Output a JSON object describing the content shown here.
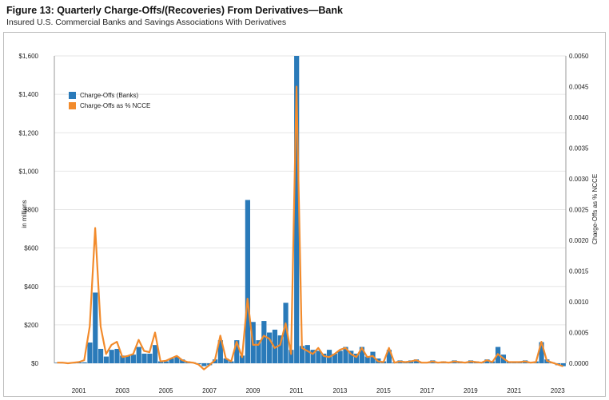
{
  "figure": {
    "title": "Figure 13: Quarterly Charge-Offs/(Recoveries) From Derivatives—Bank",
    "subtitle": "Insured U.S. Commercial Banks and Savings Associations With Derivatives"
  },
  "chart_data": {
    "type": "bar",
    "ylabel": "in millions",
    "y2label": "Charge-Offs as % NCCE",
    "ylim": [
      0,
      1600
    ],
    "y2lim": [
      0,
      0.005
    ],
    "yticks": [
      "$0",
      "$200",
      "$400",
      "$600",
      "$800",
      "$1,000",
      "$1,200",
      "$1,400",
      "$1,600"
    ],
    "y2ticks": [
      "0.0000",
      "0.0005",
      "0.0010",
      "0.0015",
      "0.0020",
      "0.0025",
      "0.0030",
      "0.0035",
      "0.0040",
      "0.0045",
      "0.0050"
    ],
    "xticks": [
      "2001",
      "2003",
      "2005",
      "2007",
      "2009",
      "2011",
      "2013",
      "2015",
      "2017",
      "2019",
      "2021",
      "2023"
    ],
    "legend_position": "top-left",
    "colors": {
      "bars": "#2a7ab9",
      "line": "#f28b2c"
    },
    "series": [
      {
        "name": "Charge-Offs (Banks)",
        "kind": "bar",
        "axis": "left",
        "x": [
          "2000Q1",
          "2000Q2",
          "2000Q3",
          "2000Q4",
          "2001Q1",
          "2001Q2",
          "2001Q3",
          "2001Q4",
          "2002Q1",
          "2002Q2",
          "2002Q3",
          "2002Q4",
          "2003Q1",
          "2003Q2",
          "2003Q3",
          "2003Q4",
          "2004Q1",
          "2004Q2",
          "2004Q3",
          "2004Q4",
          "2005Q1",
          "2005Q2",
          "2005Q3",
          "2005Q4",
          "2006Q1",
          "2006Q2",
          "2006Q3",
          "2006Q4",
          "2007Q1",
          "2007Q2",
          "2007Q3",
          "2007Q4",
          "2008Q1",
          "2008Q2",
          "2008Q3",
          "2008Q4",
          "2009Q1",
          "2009Q2",
          "2009Q3",
          "2009Q4",
          "2010Q1",
          "2010Q2",
          "2010Q3",
          "2010Q4",
          "2011Q1",
          "2011Q2",
          "2011Q3",
          "2011Q4",
          "2012Q1",
          "2012Q2",
          "2012Q3",
          "2012Q4",
          "2013Q1",
          "2013Q2",
          "2013Q3",
          "2013Q4",
          "2014Q1",
          "2014Q2",
          "2014Q3",
          "2014Q4",
          "2015Q1",
          "2015Q2",
          "2015Q3",
          "2015Q4",
          "2016Q1",
          "2016Q2",
          "2016Q3",
          "2016Q4",
          "2017Q1",
          "2017Q2",
          "2017Q3",
          "2017Q4",
          "2018Q1",
          "2018Q2",
          "2018Q3",
          "2018Q4",
          "2019Q1",
          "2019Q2",
          "2019Q3",
          "2019Q4",
          "2020Q1",
          "2020Q2",
          "2020Q3",
          "2020Q4",
          "2021Q1",
          "2021Q2",
          "2021Q3",
          "2021Q4",
          "2022Q1",
          "2022Q2",
          "2022Q3",
          "2022Q4",
          "2023Q1",
          "2023Q2"
        ],
        "values": [
          3,
          2,
          1,
          2,
          5,
          5,
          108,
          368,
          75,
          35,
          70,
          75,
          40,
          40,
          45,
          85,
          50,
          50,
          95,
          10,
          10,
          25,
          35,
          20,
          10,
          5,
          -5,
          -15,
          -10,
          20,
          120,
          25,
          10,
          120,
          40,
          850,
          215,
          120,
          220,
          160,
          175,
          145,
          315,
          70,
          1600,
          90,
          95,
          70,
          65,
          50,
          70,
          50,
          65,
          85,
          65,
          50,
          85,
          35,
          60,
          25,
          10,
          70,
          5,
          15,
          10,
          15,
          20,
          5,
          5,
          15,
          5,
          10,
          5,
          15,
          10,
          5,
          15,
          10,
          5,
          20,
          10,
          85,
          45,
          10,
          10,
          10,
          15,
          5,
          10,
          110,
          20,
          5,
          -10,
          -15
        ]
      },
      {
        "name": "Charge-Offs as % NCCE",
        "kind": "line",
        "axis": "right",
        "x": [
          "2000Q1",
          "2000Q2",
          "2000Q3",
          "2000Q4",
          "2001Q1",
          "2001Q2",
          "2001Q3",
          "2001Q4",
          "2002Q1",
          "2002Q2",
          "2002Q3",
          "2002Q4",
          "2003Q1",
          "2003Q2",
          "2003Q3",
          "2003Q4",
          "2004Q1",
          "2004Q2",
          "2004Q3",
          "2004Q4",
          "2005Q1",
          "2005Q2",
          "2005Q3",
          "2005Q4",
          "2006Q1",
          "2006Q2",
          "2006Q3",
          "2006Q4",
          "2007Q1",
          "2007Q2",
          "2007Q3",
          "2007Q4",
          "2008Q1",
          "2008Q2",
          "2008Q3",
          "2008Q4",
          "2009Q1",
          "2009Q2",
          "2009Q3",
          "2009Q4",
          "2010Q1",
          "2010Q2",
          "2010Q3",
          "2010Q4",
          "2011Q1",
          "2011Q2",
          "2011Q3",
          "2011Q4",
          "2012Q1",
          "2012Q2",
          "2012Q3",
          "2012Q4",
          "2013Q1",
          "2013Q2",
          "2013Q3",
          "2013Q4",
          "2014Q1",
          "2014Q2",
          "2014Q3",
          "2014Q4",
          "2015Q1",
          "2015Q2",
          "2015Q3",
          "2015Q4",
          "2016Q1",
          "2016Q2",
          "2016Q3",
          "2016Q4",
          "2017Q1",
          "2017Q2",
          "2017Q3",
          "2017Q4",
          "2018Q1",
          "2018Q2",
          "2018Q3",
          "2018Q4",
          "2019Q1",
          "2019Q2",
          "2019Q3",
          "2019Q4",
          "2020Q1",
          "2020Q2",
          "2020Q3",
          "2020Q4",
          "2021Q1",
          "2021Q2",
          "2021Q3",
          "2021Q4",
          "2022Q1",
          "2022Q2",
          "2022Q3",
          "2022Q4",
          "2023Q1",
          "2023Q2"
        ],
        "values": [
          1e-05,
          1e-05,
          0.0,
          1e-05,
          2e-05,
          5e-05,
          0.0006,
          0.0022,
          0.0006,
          0.00015,
          0.0003,
          0.00035,
          0.0001,
          0.00012,
          0.00015,
          0.00038,
          0.0002,
          0.00018,
          0.0005,
          3e-05,
          4e-05,
          8e-05,
          0.00012,
          5e-05,
          2e-05,
          1e-05,
          -2e-05,
          -0.0001,
          -3e-05,
          5e-05,
          0.00045,
          8e-05,
          3e-05,
          0.00035,
          0.0001,
          0.00105,
          0.0003,
          0.0003,
          0.00045,
          0.0004,
          0.00025,
          0.0003,
          0.00065,
          0.00015,
          0.0045,
          0.00025,
          0.0002,
          0.00015,
          0.00025,
          0.00012,
          0.0001,
          0.00015,
          0.00022,
          0.00025,
          0.00015,
          0.0001,
          0.00025,
          0.0001,
          0.00012,
          3e-05,
          2e-05,
          0.00025,
          1e-05,
          3e-05,
          2e-05,
          3e-05,
          5e-05,
          1e-05,
          1e-05,
          3e-05,
          1e-05,
          2e-05,
          1e-05,
          3e-05,
          2e-05,
          1e-05,
          3e-05,
          2e-05,
          1e-05,
          5e-05,
          2e-05,
          0.00015,
          8e-05,
          2e-05,
          2e-05,
          2e-05,
          3e-05,
          1e-05,
          2e-05,
          0.00035,
          4e-05,
          1e-05,
          -2e-05,
          -5e-05
        ]
      }
    ]
  }
}
